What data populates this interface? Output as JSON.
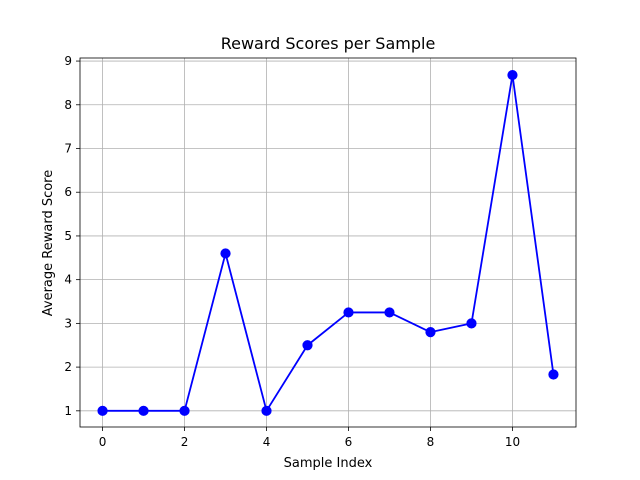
{
  "chart_data": {
    "type": "line",
    "title": "Reward Scores per Sample",
    "xlabel": "Sample Index",
    "ylabel": "Average Reward Score",
    "xlim": [
      -0.55,
      11.55
    ],
    "ylim": [
      0.63,
      9.07
    ],
    "xticks": [
      0,
      2,
      4,
      6,
      8,
      10
    ],
    "yticks": [
      1,
      2,
      3,
      4,
      5,
      6,
      7,
      8,
      9
    ],
    "grid": true,
    "series": [
      {
        "x": [
          0,
          1,
          2,
          3,
          4,
          5,
          6,
          7,
          8,
          9,
          10,
          11
        ],
        "values": [
          1.0,
          1.0,
          1.0,
          4.6,
          1.0,
          2.5,
          3.25,
          3.25,
          2.8,
          3.0,
          8.68,
          1.83
        ],
        "color": "#0000ff",
        "marker": "circle"
      }
    ]
  }
}
